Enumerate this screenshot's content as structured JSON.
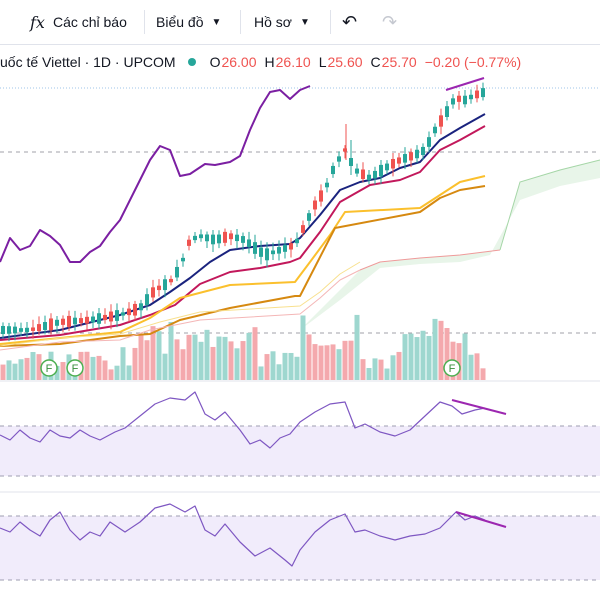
{
  "toolbar": {
    "indicators_icon": "fx",
    "indicators_label": "Các chỉ báo",
    "charts_label": "Biểu đồ",
    "profile_label": "Hồ sơ"
  },
  "legend": {
    "title": "uốc tế Viettel · 1D · UPCOM",
    "status_color": "#26a69a",
    "o_key": "O",
    "o_val": "26.00",
    "h_key": "H",
    "h_val": "26.10",
    "l_key": "L",
    "l_val": "25.60",
    "c_key": "C",
    "c_val": "25.70",
    "change": "−0.20 (−0.77%)",
    "down_color": "#ef5350"
  },
  "colors": {
    "up": "#26a69a",
    "down": "#ef5350",
    "purple": "#7b1fa2",
    "navy": "#1a237e",
    "ma_red": "#c2185b",
    "ma_yellow": "#fbc02d",
    "ma_orange": "#d68910",
    "divergence": "#9c27b0",
    "panel_fill": "#f1ecfb",
    "panel_line": "#7e57c2"
  },
  "events": {
    "label": "F"
  }
}
